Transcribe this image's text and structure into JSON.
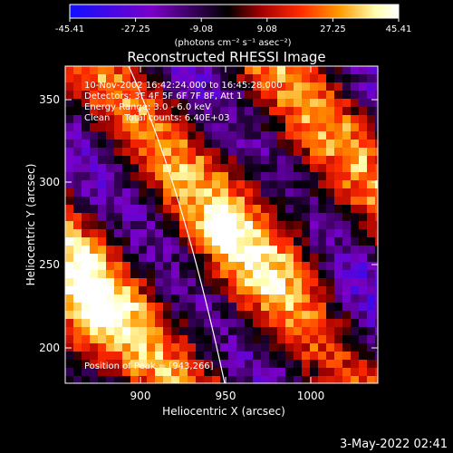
{
  "colorbar": {
    "tick_labels": [
      "-45.41",
      "-27.25",
      "-9.08",
      "9.08",
      "27.25",
      "45.41"
    ],
    "units": "(photons cm⁻² s⁻¹ asec⁻²)",
    "stops": [
      "#1010ff",
      "#7a00c8",
      "#000000",
      "#a00000",
      "#ff2a00",
      "#ff9a00",
      "#ffffb0",
      "#ffffff"
    ]
  },
  "title": "Reconstructed RHESSI Image",
  "info_lines": [
    "10-Nov-2002 16:42:24.000 to 16:45:28.000",
    "Detectors: 3F 4F 5F 6F 7F 8F, Att 1",
    "Energy Range: 3.0 - 6.0 keV",
    "Clean     Total counts: 6.40E+03"
  ],
  "peak_label": "Position of Peak = [943,266]",
  "xaxis": {
    "label": "Heliocentric X (arcsec)",
    "ticks": [
      "900",
      "950",
      "1000"
    ],
    "range": [
      860,
      1045
    ]
  },
  "yaxis": {
    "label": "Heliocentric Y (arcsec)",
    "ticks": [
      "200",
      "250",
      "300",
      "350"
    ],
    "range": [
      175,
      370
    ]
  },
  "timestamp": "3-May-2022 02:41"
}
